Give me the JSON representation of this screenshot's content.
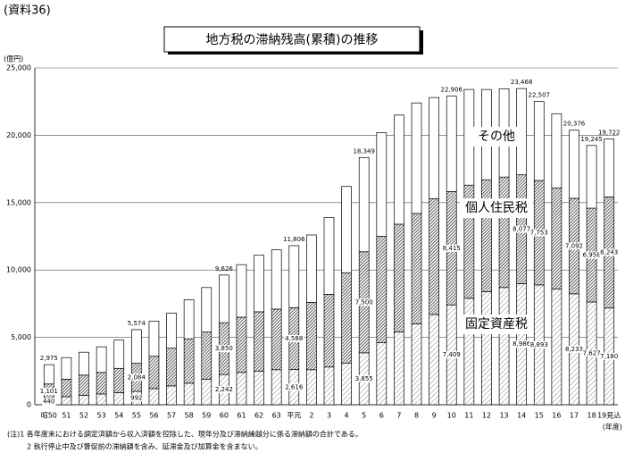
{
  "chart_data": {
    "type": "bar",
    "stacked": true,
    "label": "(資料36)",
    "title": "地方税の滞納残高(累積)の推移",
    "y_label": "(億円)",
    "x_label": "(年度)",
    "categories": [
      "昭50",
      "51",
      "52",
      "53",
      "54",
      "55",
      "56",
      "57",
      "58",
      "59",
      "60",
      "61",
      "62",
      "63",
      "平元",
      "2",
      "3",
      "4",
      "5",
      "6",
      "7",
      "8",
      "9",
      "10",
      "11",
      "12",
      "13",
      "14",
      "15",
      "16",
      "17",
      "18",
      "19見込"
    ],
    "series": [
      {
        "name": "固定資産税",
        "color": "#9a9a9a",
        "pattern": "hatch",
        "values": [
          440,
          600,
          700,
          800,
          900,
          992,
          1200,
          1400,
          1600,
          1900,
          2242,
          2400,
          2500,
          2600,
          2616,
          2600,
          2800,
          3100,
          3855,
          4600,
          5400,
          6000,
          6700,
          7409,
          7900,
          8400,
          8700,
          8986,
          8893,
          8600,
          8233,
          7627,
          7180
        ],
        "value_labels": [
          "440",
          null,
          null,
          null,
          null,
          "992",
          null,
          null,
          null,
          null,
          "2,242",
          null,
          null,
          null,
          "2,616",
          null,
          null,
          null,
          "3,855",
          null,
          null,
          null,
          null,
          "7,409",
          null,
          null,
          null,
          "8,986",
          "8,893",
          null,
          "8,233",
          "7,627",
          "7,180"
        ]
      },
      {
        "name": "個人住民税",
        "color": "#333333",
        "pattern": "dense-hatch",
        "values": [
          1101,
          1300,
          1500,
          1600,
          1800,
          2084,
          2400,
          2800,
          3300,
          3500,
          3850,
          4100,
          4400,
          4500,
          4588,
          5000,
          5400,
          6700,
          7500,
          7900,
          8000,
          8200,
          8600,
          8415,
          8400,
          8300,
          8200,
          8077,
          7753,
          7500,
          7092,
          6958,
          8243
        ],
        "value_labels": [
          "1,101",
          null,
          null,
          null,
          null,
          "2,084",
          null,
          null,
          null,
          null,
          "3,850",
          null,
          null,
          null,
          "4,588",
          null,
          null,
          null,
          "7,500",
          null,
          null,
          null,
          null,
          "8,415",
          null,
          null,
          null,
          "8,077",
          "7,753",
          null,
          "7,092",
          "6,958",
          "8,243"
        ]
      },
      {
        "name": "その他",
        "color": "#ffffff",
        "pattern": "none",
        "values": [
          1434,
          1600,
          1700,
          1900,
          2100,
          2498,
          2600,
          2600,
          2900,
          3300,
          3534,
          3900,
          4200,
          4400,
          4602,
          5000,
          5700,
          6400,
          6994,
          7700,
          8100,
          8200,
          7500,
          7082,
          7100,
          6700,
          6550,
          6405,
          5861,
          5500,
          5051,
          4660,
          4299
        ]
      }
    ],
    "total_labels": [
      "2,975",
      null,
      null,
      null,
      null,
      "5,574",
      null,
      null,
      null,
      null,
      "9,626",
      null,
      null,
      null,
      "11,806",
      null,
      null,
      null,
      "18,349",
      null,
      null,
      null,
      null,
      "22,906",
      null,
      null,
      null,
      "23,468",
      "22,507",
      null,
      "20,376",
      "19,245",
      "19,722"
    ],
    "ylim": [
      0,
      25000
    ],
    "yticks": [
      0,
      {
        "value": 5000,
        "label": "5,000"
      },
      {
        "value": 10000,
        "label": "10,000"
      },
      {
        "value": 15000,
        "label": "15,000"
      },
      {
        "value": 20000,
        "label": "20,000"
      },
      {
        "value": 25000,
        "label": "25,000"
      }
    ],
    "grid": true,
    "notes": [
      "(注)1  各年度末における調定済額から収入済額を控除した、現年分及び滞納繰越分に係る滞納額の合計である。",
      "2  執行停止中及び督促前の滞納額を含み、延滞金及び加算金を含まない。"
    ]
  }
}
